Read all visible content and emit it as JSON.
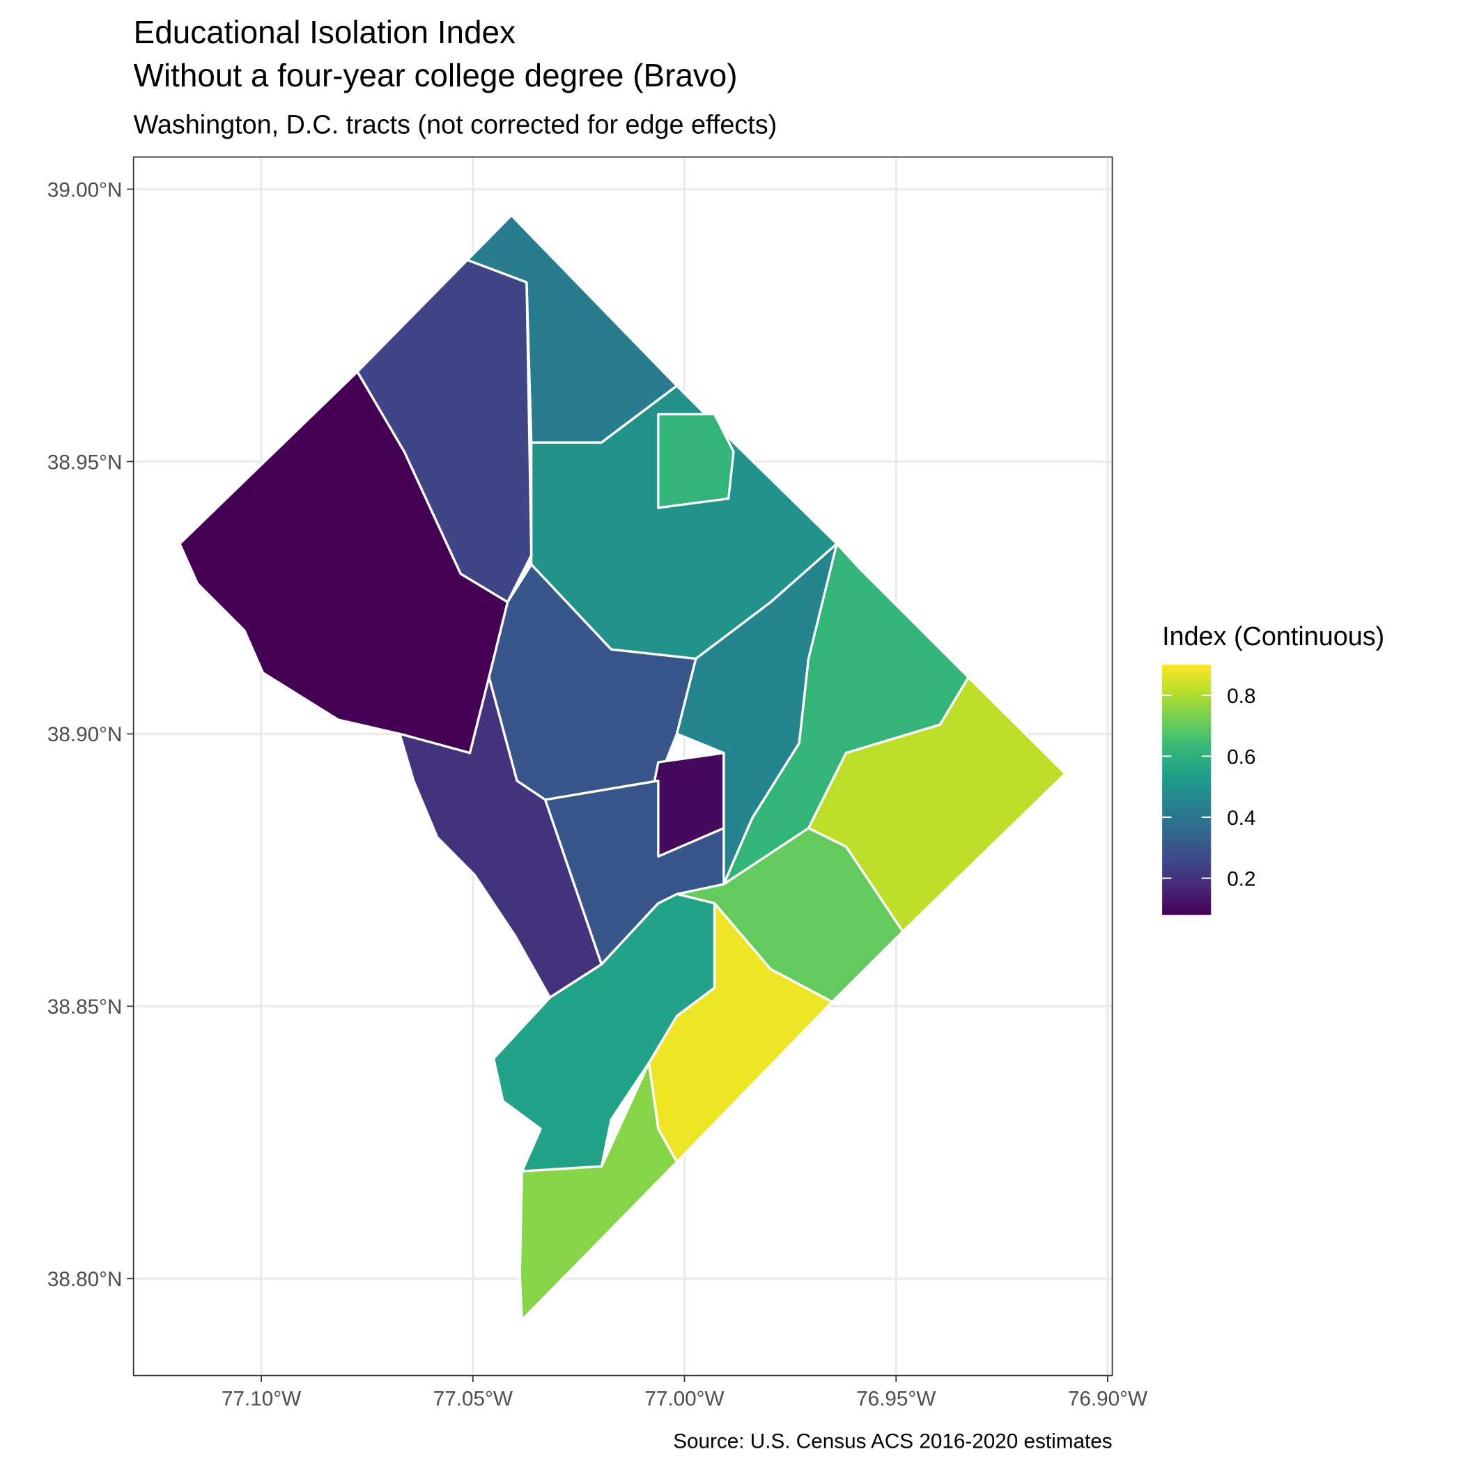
{
  "chart_data": {
    "type": "map",
    "title": [
      "Educational Isolation Index",
      "Without a four-year college degree (Bravo)"
    ],
    "subtitle": "Washington, D.C. tracts (not corrected for edge effects)",
    "caption": "Source: U.S. Census ACS 2016-2020 estimates",
    "xlim": [
      -77.1302,
      -76.8989
    ],
    "ylim": [
      38.7822,
      39.0059
    ],
    "xticks": [
      {
        "value": -77.1,
        "label": "77.10°W"
      },
      {
        "value": -77.05,
        "label": "77.05°W"
      },
      {
        "value": -77.0,
        "label": "77.00°W"
      },
      {
        "value": -76.95,
        "label": "76.95°W"
      },
      {
        "value": -76.9,
        "label": "76.90°W"
      }
    ],
    "yticks": [
      {
        "value": 38.8,
        "label": "38.80°N"
      },
      {
        "value": 38.85,
        "label": "38.85°N"
      },
      {
        "value": 38.9,
        "label": "38.90°N"
      },
      {
        "value": 38.95,
        "label": "38.95°N"
      },
      {
        "value": 39.0,
        "label": "39.00°N"
      }
    ],
    "grid": true,
    "legend": {
      "title": "Index (Continuous)",
      "limits": [
        0.08,
        0.9
      ],
      "ticks": [
        0.2,
        0.4,
        0.6,
        0.8
      ],
      "palette": [
        "#440154",
        "#482878",
        "#3e4989",
        "#31688e",
        "#26828e",
        "#1f9e89",
        "#35b779",
        "#6ece58",
        "#b5de2b",
        "#fde725"
      ]
    },
    "regions": [
      {
        "value": 0.08,
        "polygon": [
          [
            -77.1193,
            38.9349
          ],
          [
            -77.0773,
            38.9665
          ],
          [
            -77.0662,
            38.9518
          ],
          [
            -77.0529,
            38.9294
          ],
          [
            -77.0418,
            38.9242
          ],
          [
            -77.0462,
            38.9104
          ],
          [
            -77.0507,
            38.8965
          ],
          [
            -77.0673,
            38.9
          ],
          [
            -77.0818,
            38.9026
          ],
          [
            -77.0996,
            38.9112
          ],
          [
            -77.104,
            38.919
          ],
          [
            -77.1151,
            38.9276
          ]
        ]
      },
      {
        "value": 0.25,
        "polygon": [
          [
            -77.0773,
            38.9665
          ],
          [
            -77.0513,
            38.987
          ],
          [
            -77.0373,
            38.9829
          ],
          [
            -77.0362,
            38.9328
          ],
          [
            -77.0418,
            38.9242
          ],
          [
            -77.0529,
            38.9294
          ],
          [
            -77.0662,
            38.9518
          ]
        ]
      },
      {
        "value": 0.42,
        "polygon": [
          [
            -77.0513,
            38.987
          ],
          [
            -77.0409,
            38.9952
          ],
          [
            -77.0018,
            38.9639
          ],
          [
            -77.0196,
            38.9535
          ],
          [
            -77.0362,
            38.9535
          ],
          [
            -77.0373,
            38.9829
          ]
        ]
      },
      {
        "value": 0.5,
        "polygon": [
          [
            -77.0362,
            38.9535
          ],
          [
            -77.0196,
            38.9535
          ],
          [
            -77.0018,
            38.9639
          ],
          [
            -76.9884,
            38.9535
          ],
          [
            -76.964,
            38.9349
          ],
          [
            -76.9796,
            38.9242
          ],
          [
            -76.9973,
            38.9138
          ],
          [
            -77.0173,
            38.9155
          ],
          [
            -77.0362,
            38.9311
          ]
        ]
      },
      {
        "value": 0.62,
        "polygon": [
          [
            -77.0062,
            38.9587
          ],
          [
            -76.9929,
            38.9587
          ],
          [
            -76.9884,
            38.9518
          ],
          [
            -76.9896,
            38.9432
          ],
          [
            -77.0062,
            38.9415
          ]
        ]
      },
      {
        "value": 0.3,
        "polygon": [
          [
            -77.0362,
            38.9311
          ],
          [
            -77.0173,
            38.9155
          ],
          [
            -76.9973,
            38.9138
          ],
          [
            -77.0018,
            38.9
          ],
          [
            -77.0062,
            38.8914
          ],
          [
            -77.0329,
            38.8879
          ],
          [
            -77.0396,
            38.8914
          ],
          [
            -77.0462,
            38.9104
          ],
          [
            -77.0418,
            38.9242
          ]
        ]
      },
      {
        "value": 0.2,
        "polygon": [
          [
            -77.0673,
            38.9
          ],
          [
            -77.0507,
            38.8965
          ],
          [
            -77.0462,
            38.9104
          ],
          [
            -77.0396,
            38.8914
          ],
          [
            -77.0329,
            38.8879
          ],
          [
            -77.0196,
            38.8577
          ],
          [
            -77.0318,
            38.8516
          ],
          [
            -77.04,
            38.8629
          ],
          [
            -77.0496,
            38.8741
          ],
          [
            -77.0584,
            38.881
          ],
          [
            -77.064,
            38.8914
          ]
        ]
      },
      {
        "value": 0.1,
        "polygon": [
          [
            -77.0062,
            38.8948
          ],
          [
            -76.9907,
            38.8965
          ],
          [
            -76.9907,
            38.8827
          ],
          [
            -77.0062,
            38.8775
          ],
          [
            -77.0084,
            38.8862
          ]
        ]
      },
      {
        "value": 0.3,
        "polygon": [
          [
            -77.0329,
            38.8879
          ],
          [
            -77.0062,
            38.8914
          ],
          [
            -77.0062,
            38.8775
          ],
          [
            -76.9907,
            38.8827
          ],
          [
            -76.9907,
            38.8724
          ],
          [
            -77.0062,
            38.8689
          ],
          [
            -77.0196,
            38.8577
          ]
        ]
      },
      {
        "value": 0.45,
        "polygon": [
          [
            -76.9973,
            38.9138
          ],
          [
            -76.9796,
            38.9242
          ],
          [
            -76.964,
            38.9349
          ],
          [
            -76.9584,
            38.9302
          ],
          [
            -76.9707,
            38.9138
          ],
          [
            -76.9729,
            38.8983
          ],
          [
            -76.984,
            38.8845
          ],
          [
            -76.9907,
            38.8724
          ],
          [
            -76.9907,
            38.8965
          ],
          [
            -77.0018,
            38.9
          ]
        ]
      },
      {
        "value": 0.62,
        "polygon": [
          [
            -76.964,
            38.9349
          ],
          [
            -76.9584,
            38.9302
          ],
          [
            -76.9329,
            38.9104
          ],
          [
            -76.9396,
            38.9017
          ],
          [
            -76.9618,
            38.8965
          ],
          [
            -76.9707,
            38.8827
          ],
          [
            -76.984,
            38.8758
          ],
          [
            -76.9907,
            38.8724
          ],
          [
            -76.984,
            38.8845
          ],
          [
            -76.9729,
            38.8983
          ],
          [
            -76.9707,
            38.9138
          ]
        ]
      },
      {
        "value": 0.82,
        "polygon": [
          [
            -76.9329,
            38.9104
          ],
          [
            -76.91,
            38.8927
          ],
          [
            -76.9484,
            38.8637
          ],
          [
            -76.9618,
            38.8793
          ],
          [
            -76.9707,
            38.8827
          ],
          [
            -76.9618,
            38.8965
          ],
          [
            -76.9396,
            38.9017
          ]
        ]
      },
      {
        "value": 0.7,
        "polygon": [
          [
            -76.9907,
            38.8724
          ],
          [
            -76.9707,
            38.8827
          ],
          [
            -76.9618,
            38.8793
          ],
          [
            -76.9484,
            38.8637
          ],
          [
            -76.9651,
            38.8508
          ],
          [
            -76.9796,
            38.8568
          ],
          [
            -76.9929,
            38.8689
          ],
          [
            -77.0018,
            38.8706
          ]
        ]
      },
      {
        "value": 0.88,
        "polygon": [
          [
            -76.9929,
            38.8689
          ],
          [
            -76.9796,
            38.8568
          ],
          [
            -76.9651,
            38.8508
          ],
          [
            -77.0018,
            38.8214
          ],
          [
            -77.0062,
            38.8275
          ],
          [
            -77.0084,
            38.8396
          ],
          [
            -77.0018,
            38.8482
          ],
          [
            -76.9929,
            38.8534
          ]
        ]
      },
      {
        "value": 0.55,
        "polygon": [
          [
            -77.0018,
            38.8706
          ],
          [
            -76.9929,
            38.8689
          ],
          [
            -76.9929,
            38.8534
          ],
          [
            -77.0018,
            38.8482
          ],
          [
            -77.0084,
            38.8396
          ],
          [
            -77.0173,
            38.8292
          ],
          [
            -77.0196,
            38.8206
          ],
          [
            -77.0384,
            38.8197
          ],
          [
            -77.034,
            38.8275
          ],
          [
            -77.0429,
            38.8326
          ],
          [
            -77.0451,
            38.8404
          ],
          [
            -77.0318,
            38.8516
          ],
          [
            -77.0196,
            38.8577
          ],
          [
            -77.0062,
            38.8689
          ]
        ]
      },
      {
        "value": 0.75,
        "polygon": [
          [
            -77.0384,
            38.8197
          ],
          [
            -77.0196,
            38.8206
          ],
          [
            -77.0084,
            38.8396
          ],
          [
            -77.0062,
            38.8275
          ],
          [
            -77.0018,
            38.8214
          ],
          [
            -77.0384,
            38.7924
          ],
          [
            -77.0389,
            38.8007
          ]
        ]
      }
    ]
  }
}
